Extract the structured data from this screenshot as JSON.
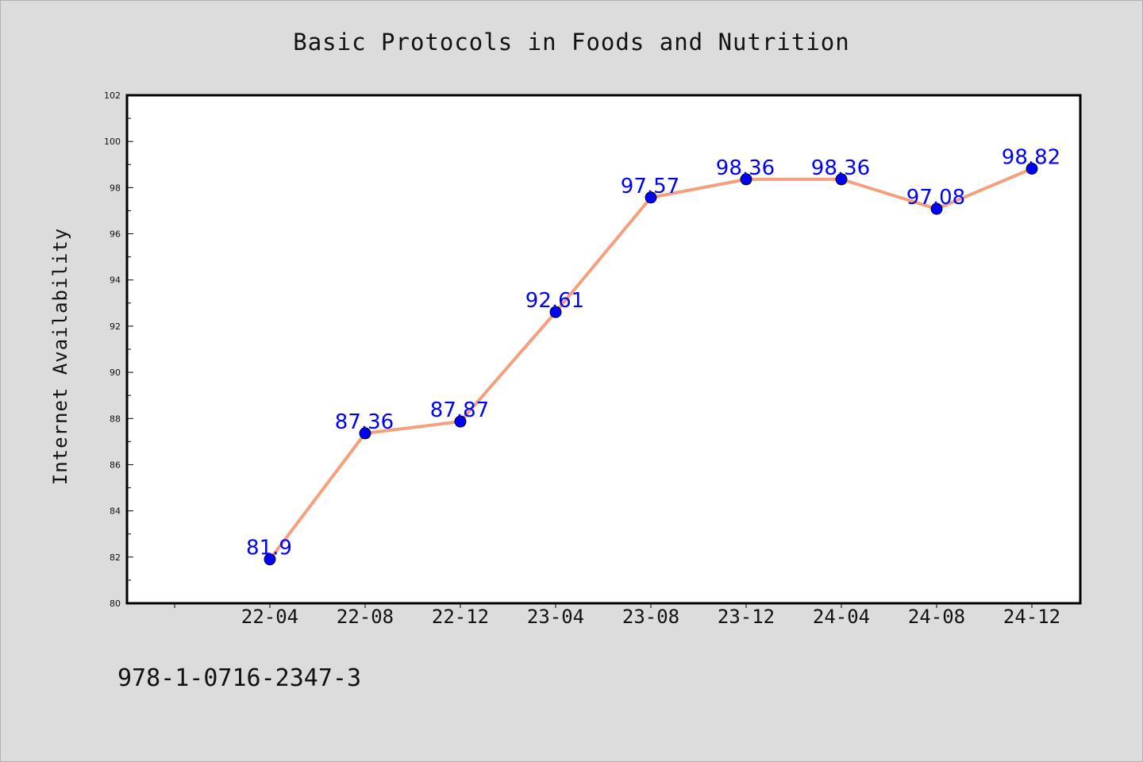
{
  "chart_data": {
    "type": "line",
    "title": "Basic Protocols in Foods and Nutrition",
    "xlabel": "",
    "ylabel": "Internet Availability",
    "categories": [
      "22-04",
      "22-08",
      "22-12",
      "23-04",
      "23-08",
      "23-12",
      "24-04",
      "24-08",
      "24-12"
    ],
    "series": [
      {
        "values": [
          81.9,
          87.36,
          87.87,
          92.61,
          97.57,
          98.36,
          98.36,
          97.08,
          98.82
        ],
        "labels": [
          "81.9",
          "87.36",
          "87.87",
          "92.61",
          "97.57",
          "98.36",
          "98.36",
          "97.08",
          "98.82"
        ]
      }
    ],
    "ylim": [
      80,
      102
    ],
    "yticks": [
      "80",
      "82",
      "84",
      "86",
      "88",
      "90",
      "92",
      "94",
      "96",
      "98",
      "100",
      "102"
    ],
    "grid": false,
    "legend": "none",
    "colors": {
      "line": "#f4a07f",
      "marker": "#0000ff",
      "label": "#0000ff",
      "background": "#dcdcdc",
      "plot_area": "#ffffff"
    }
  },
  "footer": {
    "isbn": "978-1-0716-2347-3"
  }
}
